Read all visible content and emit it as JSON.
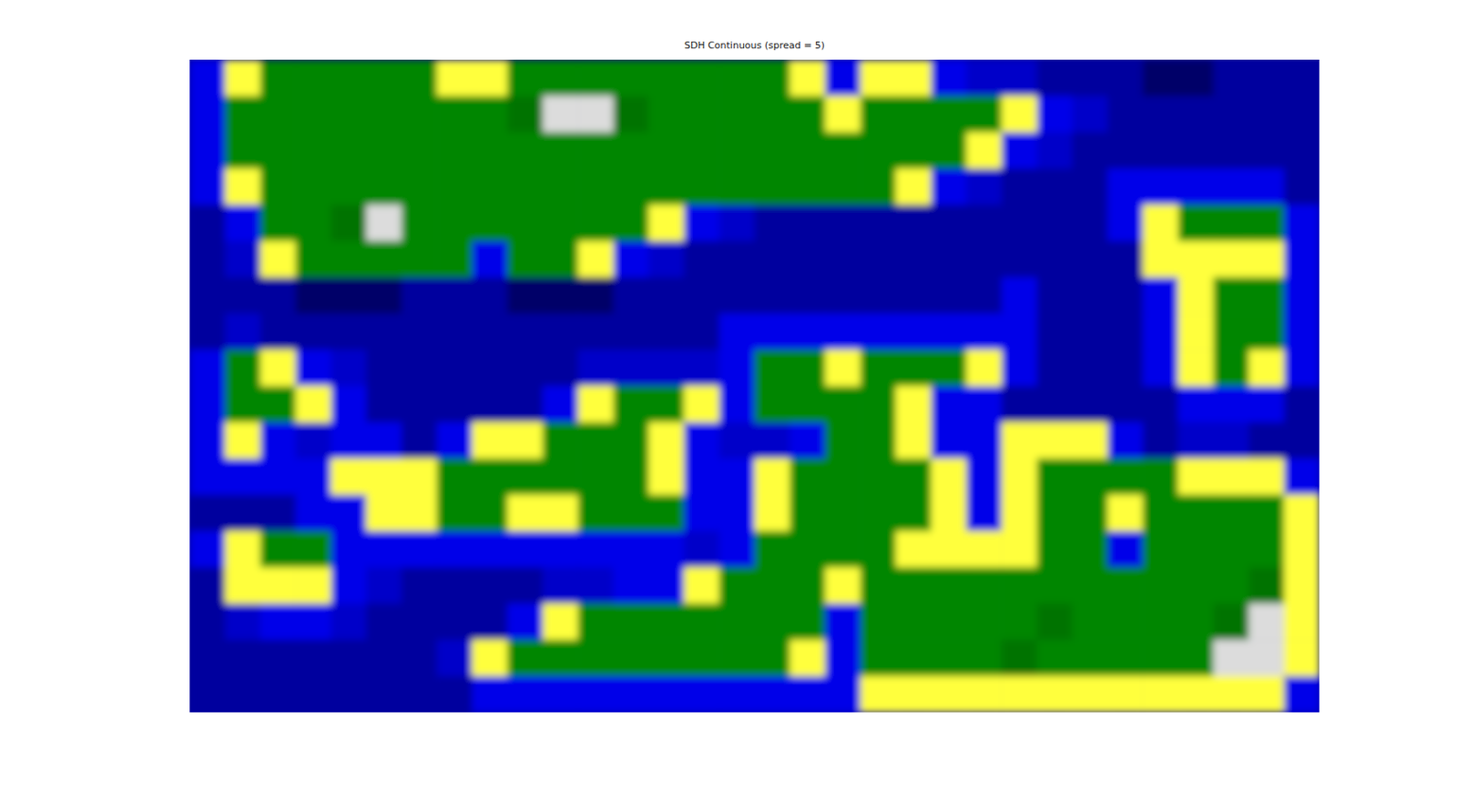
{
  "chart_data": {
    "type": "heatmap",
    "title": "SDH Continuous (spread = 5)",
    "tick_labels": false,
    "cells": [
      [
        -0.1,
        0.03,
        0.3,
        0.3,
        0.3,
        0.3,
        0.3,
        0.03,
        0.03,
        0.3,
        0.3,
        0.3,
        0.3,
        0.3,
        0.3,
        0.3,
        0.3,
        0.03,
        -0.1,
        0.03,
        0.03,
        -0.1,
        -0.25,
        -0.25,
        -0.45,
        -0.45,
        -0.45,
        -0.7,
        -0.7,
        -0.45,
        -0.45,
        -0.45
      ],
      [
        -0.1,
        0.3,
        0.3,
        0.3,
        0.3,
        0.3,
        0.3,
        0.3,
        0.3,
        0.5,
        0.9,
        0.9,
        0.5,
        0.3,
        0.3,
        0.3,
        0.3,
        0.3,
        0.03,
        0.3,
        0.3,
        0.3,
        0.3,
        0.03,
        -0.1,
        -0.25,
        -0.45,
        -0.45,
        -0.45,
        -0.45,
        -0.45,
        -0.45
      ],
      [
        -0.1,
        0.3,
        0.3,
        0.3,
        0.3,
        0.3,
        0.3,
        0.3,
        0.3,
        0.3,
        0.3,
        0.3,
        0.3,
        0.3,
        0.3,
        0.3,
        0.3,
        0.3,
        0.3,
        0.3,
        0.3,
        0.3,
        0.03,
        -0.1,
        -0.25,
        -0.45,
        -0.45,
        -0.45,
        -0.45,
        -0.45,
        -0.45,
        -0.45
      ],
      [
        -0.1,
        0.03,
        0.3,
        0.3,
        0.3,
        0.3,
        0.3,
        0.3,
        0.3,
        0.3,
        0.3,
        0.3,
        0.3,
        0.3,
        0.3,
        0.3,
        0.3,
        0.3,
        0.3,
        0.3,
        0.03,
        -0.1,
        -0.25,
        -0.45,
        -0.45,
        -0.45,
        -0.1,
        -0.1,
        -0.1,
        -0.1,
        -0.1,
        -0.45
      ],
      [
        -0.45,
        -0.1,
        0.3,
        0.3,
        0.5,
        0.9,
        0.3,
        0.3,
        0.3,
        0.3,
        0.3,
        0.3,
        0.3,
        0.03,
        -0.1,
        -0.25,
        -0.45,
        -0.45,
        -0.45,
        -0.45,
        -0.45,
        -0.45,
        -0.45,
        -0.45,
        -0.45,
        -0.45,
        -0.1,
        0.03,
        0.3,
        0.3,
        0.3,
        -0.1
      ],
      [
        -0.45,
        -0.25,
        0.03,
        0.3,
        0.3,
        0.3,
        0.3,
        0.3,
        -0.1,
        0.3,
        0.3,
        0.03,
        -0.1,
        -0.25,
        -0.45,
        -0.45,
        -0.45,
        -0.45,
        -0.45,
        -0.45,
        -0.45,
        -0.45,
        -0.45,
        -0.45,
        -0.45,
        -0.45,
        -0.45,
        0.03,
        0.03,
        0.03,
        0.03,
        -0.1
      ],
      [
        -0.45,
        -0.45,
        -0.45,
        -0.7,
        -0.7,
        -0.7,
        -0.45,
        -0.45,
        -0.45,
        -0.7,
        -0.7,
        -0.7,
        -0.45,
        -0.45,
        -0.45,
        -0.45,
        -0.45,
        -0.45,
        -0.45,
        -0.45,
        -0.45,
        -0.45,
        -0.45,
        -0.1,
        -0.45,
        -0.45,
        -0.45,
        -0.1,
        0.03,
        0.3,
        0.3,
        -0.1
      ],
      [
        -0.45,
        -0.25,
        -0.45,
        -0.45,
        -0.45,
        -0.45,
        -0.45,
        -0.45,
        -0.45,
        -0.45,
        -0.45,
        -0.45,
        -0.45,
        -0.45,
        -0.45,
        -0.1,
        -0.1,
        -0.1,
        -0.1,
        -0.1,
        -0.1,
        -0.1,
        -0.1,
        -0.1,
        -0.45,
        -0.45,
        -0.45,
        -0.1,
        0.03,
        0.3,
        0.3,
        -0.1
      ],
      [
        -0.1,
        0.3,
        0.03,
        -0.1,
        -0.25,
        -0.45,
        -0.45,
        -0.45,
        -0.45,
        -0.45,
        -0.45,
        -0.25,
        -0.25,
        -0.25,
        -0.25,
        -0.1,
        0.3,
        0.3,
        0.03,
        0.3,
        0.3,
        0.3,
        0.03,
        -0.1,
        -0.45,
        -0.45,
        -0.45,
        -0.1,
        0.03,
        0.3,
        0.03,
        -0.1
      ],
      [
        -0.1,
        0.3,
        0.3,
        0.03,
        -0.1,
        -0.45,
        -0.45,
        -0.45,
        -0.45,
        -0.45,
        -0.1,
        0.03,
        0.3,
        0.3,
        0.03,
        -0.1,
        0.3,
        0.3,
        0.3,
        0.3,
        0.03,
        -0.1,
        -0.1,
        -0.45,
        -0.45,
        -0.45,
        -0.45,
        -0.45,
        -0.1,
        -0.1,
        -0.1,
        -0.45
      ],
      [
        -0.1,
        0.03,
        -0.1,
        -0.25,
        -0.1,
        -0.1,
        -0.45,
        -0.1,
        0.03,
        0.03,
        0.3,
        0.3,
        0.3,
        0.03,
        -0.1,
        -0.25,
        -0.25,
        -0.1,
        0.3,
        0.3,
        0.03,
        -0.1,
        -0.1,
        0.03,
        0.03,
        0.03,
        -0.1,
        -0.45,
        -0.25,
        -0.25,
        -0.45,
        -0.45
      ],
      [
        -0.1,
        -0.1,
        -0.1,
        -0.1,
        0.03,
        0.03,
        0.03,
        0.3,
        0.3,
        0.3,
        0.3,
        0.3,
        0.3,
        0.03,
        -0.1,
        -0.1,
        0.03,
        0.3,
        0.3,
        0.3,
        0.3,
        0.03,
        -0.1,
        0.03,
        0.3,
        0.3,
        0.3,
        0.3,
        0.03,
        0.03,
        0.03,
        -0.1
      ],
      [
        -0.45,
        -0.45,
        -0.45,
        -0.1,
        -0.1,
        0.03,
        0.03,
        0.3,
        0.3,
        0.03,
        0.03,
        0.3,
        0.3,
        0.3,
        -0.1,
        -0.1,
        0.03,
        0.3,
        0.3,
        0.3,
        0.3,
        0.03,
        -0.1,
        0.03,
        0.3,
        0.3,
        0.03,
        0.3,
        0.3,
        0.3,
        0.3,
        0.03
      ],
      [
        -0.1,
        0.03,
        0.3,
        0.3,
        -0.1,
        -0.1,
        -0.1,
        -0.1,
        -0.1,
        -0.1,
        -0.1,
        -0.1,
        -0.1,
        -0.1,
        -0.25,
        -0.1,
        0.3,
        0.3,
        0.3,
        0.3,
        0.03,
        0.03,
        0.03,
        0.03,
        0.3,
        0.3,
        -0.1,
        0.3,
        0.3,
        0.3,
        0.3,
        0.03
      ],
      [
        -0.45,
        0.03,
        0.03,
        0.03,
        -0.1,
        -0.25,
        -0.45,
        -0.45,
        -0.45,
        -0.45,
        -0.25,
        -0.25,
        -0.1,
        -0.1,
        0.03,
        0.3,
        0.3,
        0.3,
        0.03,
        0.3,
        0.3,
        0.3,
        0.3,
        0.3,
        0.3,
        0.3,
        0.3,
        0.3,
        0.3,
        0.3,
        0.5,
        0.03
      ],
      [
        -0.45,
        -0.25,
        -0.1,
        -0.1,
        -0.25,
        -0.45,
        -0.45,
        -0.45,
        -0.45,
        -0.1,
        0.03,
        0.3,
        0.3,
        0.3,
        0.3,
        0.3,
        0.3,
        0.3,
        -0.1,
        0.3,
        0.3,
        0.3,
        0.3,
        0.3,
        0.5,
        0.3,
        0.3,
        0.3,
        0.3,
        0.5,
        0.9,
        0.03
      ],
      [
        -0.45,
        -0.45,
        -0.45,
        -0.45,
        -0.45,
        -0.45,
        -0.45,
        -0.25,
        0.03,
        0.3,
        0.3,
        0.3,
        0.3,
        0.3,
        0.3,
        0.3,
        0.3,
        0.03,
        -0.1,
        0.3,
        0.3,
        0.3,
        0.3,
        0.5,
        0.3,
        0.3,
        0.3,
        0.3,
        0.3,
        0.9,
        0.9,
        0.03
      ],
      [
        -0.45,
        -0.45,
        -0.45,
        -0.45,
        -0.45,
        -0.45,
        -0.45,
        -0.45,
        -0.1,
        -0.1,
        -0.1,
        -0.1,
        -0.1,
        -0.1,
        -0.1,
        -0.1,
        -0.1,
        -0.1,
        -0.1,
        0.03,
        0.03,
        0.03,
        0.03,
        0.03,
        0.03,
        0.03,
        0.03,
        0.03,
        0.03,
        0.03,
        0.03,
        -0.1
      ]
    ]
  }
}
